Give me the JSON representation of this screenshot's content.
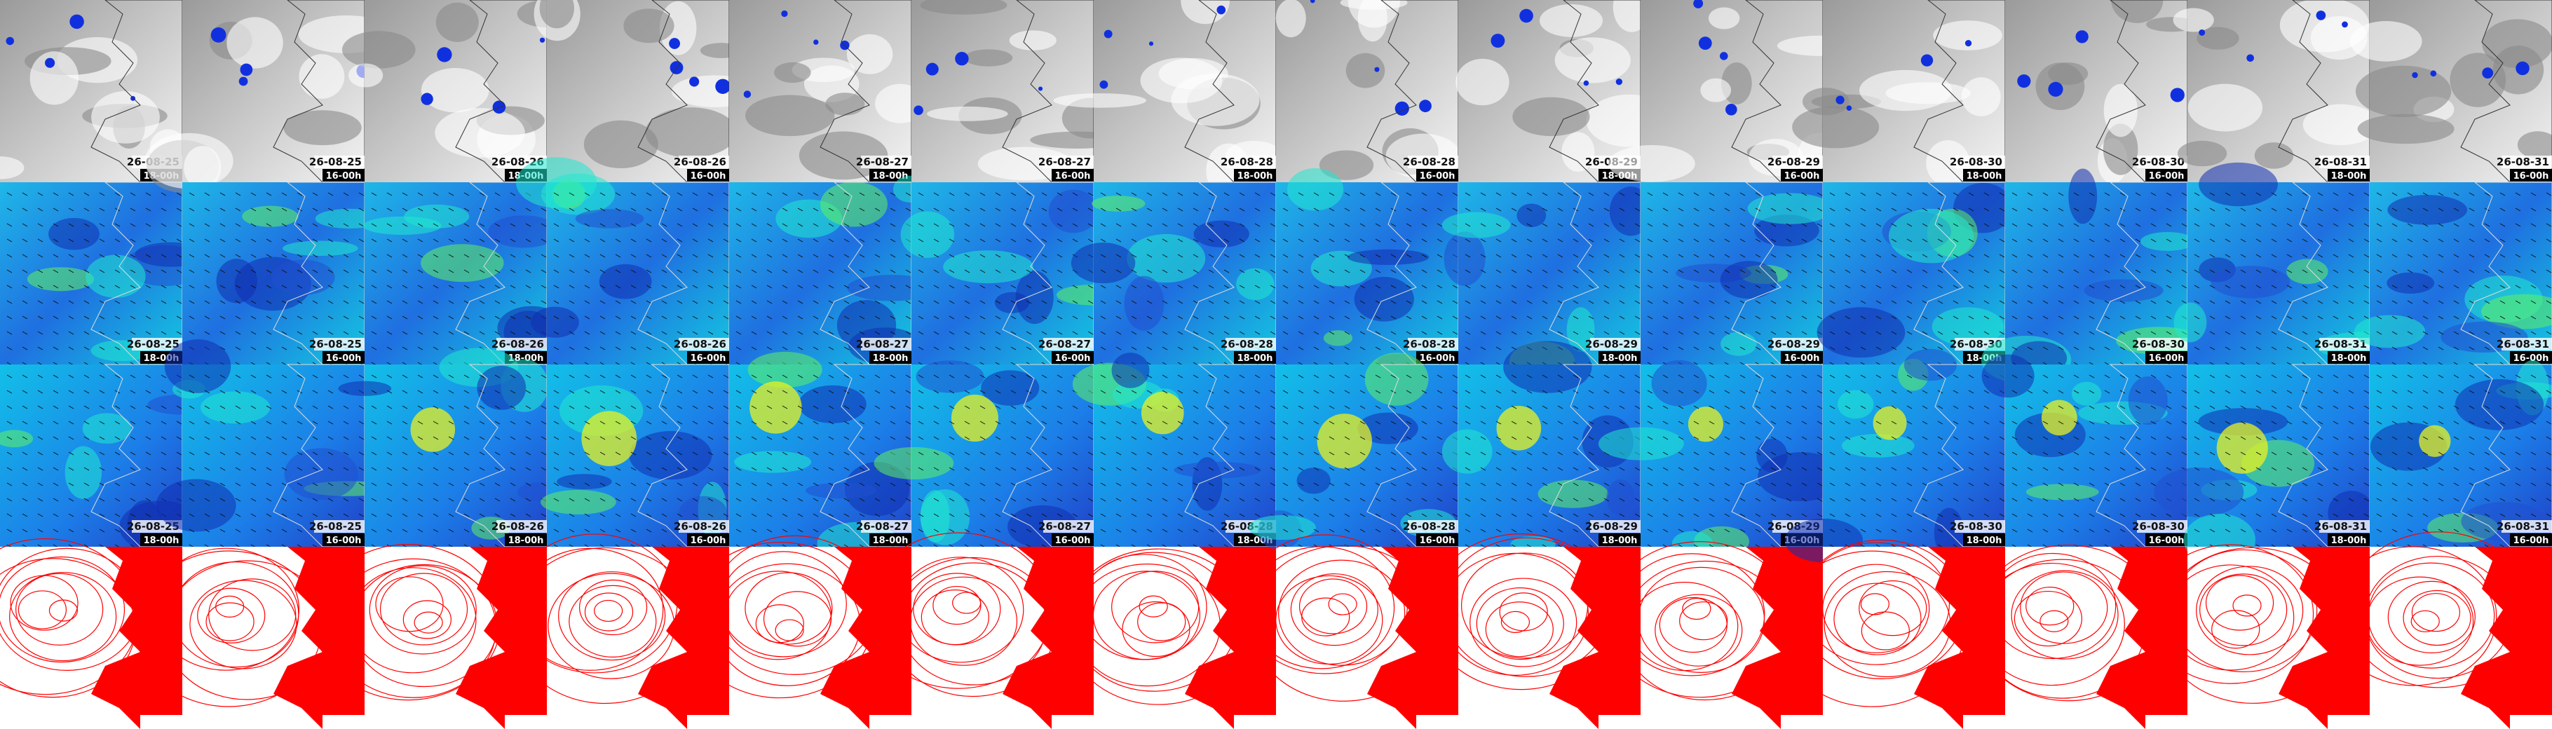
{
  "columns": [
    {
      "date": "26-08-25",
      "time": "18-00h"
    },
    {
      "date": "26-08-25",
      "time": "16-00h"
    },
    {
      "date": "26-08-26",
      "time": "18-00h"
    },
    {
      "date": "26-08-26",
      "time": "16-00h"
    },
    {
      "date": "26-08-27",
      "time": "18-00h"
    },
    {
      "date": "26-08-27",
      "time": "16-00h"
    },
    {
      "date": "26-08-28",
      "time": "18-00h"
    },
    {
      "date": "26-08-28",
      "time": "16-00h"
    },
    {
      "date": "26-08-29",
      "time": "18-00h"
    },
    {
      "date": "26-08-29",
      "time": "16-00h"
    },
    {
      "date": "26-08-30",
      "time": "18-00h"
    },
    {
      "date": "26-08-30",
      "time": "16-00h"
    },
    {
      "date": "26-08-31",
      "time": "18-00h"
    },
    {
      "date": "26-08-31",
      "time": "16-00h"
    }
  ]
}
